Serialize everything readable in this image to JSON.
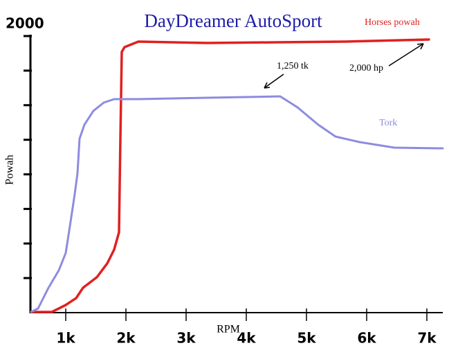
{
  "chart_data": {
    "type": "line",
    "title": "DayDreamer AutoSport",
    "xlabel": "RPM",
    "ylabel": "Powah",
    "xlim": [
      425,
      7265
    ],
    "ylim": [
      0,
      2000
    ],
    "xticks": [
      {
        "value": 1000,
        "label": "1k"
      },
      {
        "value": 2000,
        "label": "2k"
      },
      {
        "value": 3000,
        "label": "3k"
      },
      {
        "value": 4000,
        "label": "4k"
      },
      {
        "value": 5000,
        "label": "5k"
      },
      {
        "value": 6000,
        "label": "6k"
      },
      {
        "value": 7000,
        "label": "7k"
      }
    ],
    "yticks": [
      {
        "value": 250,
        "label": null
      },
      {
        "value": 500,
        "label": null
      },
      {
        "value": 750,
        "label": null
      },
      {
        "value": 1000,
        "label": null
      },
      {
        "value": 1250,
        "label": null
      },
      {
        "value": 1500,
        "label": null
      },
      {
        "value": 1750,
        "label": null
      },
      2000
    ],
    "series": [
      {
        "name": "Horses powah",
        "color": "#e02020",
        "x": [
          425,
          770,
          1000,
          1172,
          1287,
          1517,
          1690,
          1805,
          1885,
          1908,
          1931,
          1977,
          2207,
          3356,
          4506,
          5655,
          7034
        ],
        "values": [
          5,
          5,
          55,
          105,
          180,
          256,
          356,
          456,
          581,
          1258,
          1885,
          1920,
          1960,
          1950,
          1955,
          1960,
          1975
        ]
      },
      {
        "name": "Tork",
        "color": "#8c8ce0",
        "x": [
          425,
          540,
          713,
          885,
          1000,
          1080,
          1149,
          1195,
          1230,
          1310,
          1460,
          1632,
          1805,
          2207,
          3356,
          4563,
          4851,
          5195,
          5483,
          5885,
          6460,
          7264
        ],
        "values": [
          5,
          30,
          180,
          306,
          431,
          657,
          857,
          1008,
          1258,
          1359,
          1459,
          1519,
          1544,
          1544,
          1554,
          1564,
          1484,
          1359,
          1273,
          1233,
          1193,
          1188
        ]
      }
    ],
    "annotations": [
      "1,250 tk",
      "2,000 hp"
    ]
  }
}
